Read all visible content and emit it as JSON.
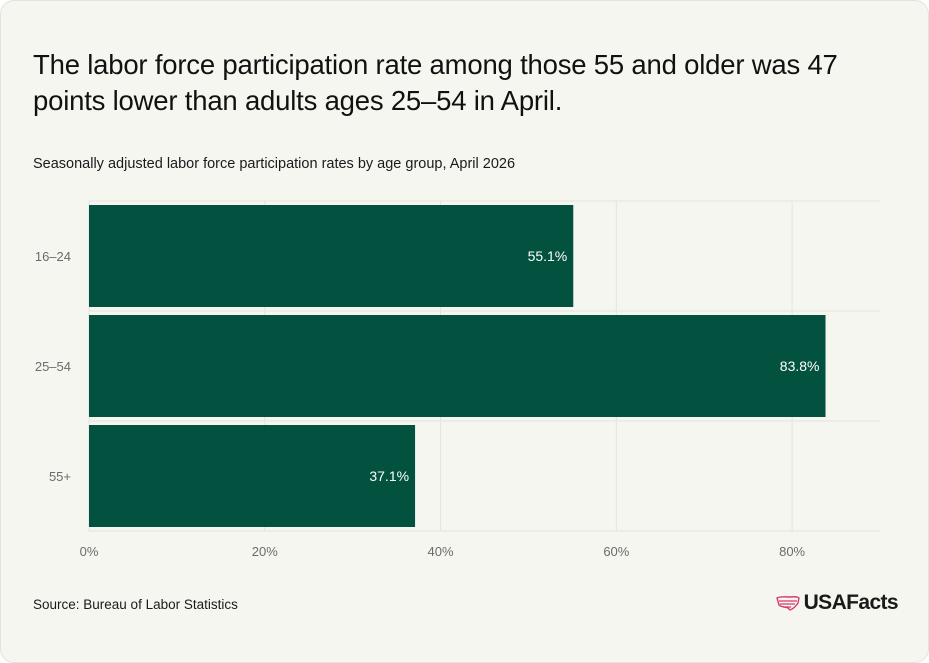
{
  "header": {
    "title": "The labor force participation rate among those 55 and older was 47 points lower than adults ages 25–54 in April.",
    "subtitle": "Seasonally adjusted labor force participation rates by age group, April 2026"
  },
  "footer": {
    "source": "Source: Bureau of Labor Statistics",
    "logo_text": "USAFacts"
  },
  "colors": {
    "bar": "#02523f",
    "grid": "#e4e4de",
    "label_inside": "#ffffff",
    "tick": "#6b6b6b",
    "logo_accent": "#d63a6e"
  },
  "chart_data": {
    "type": "bar",
    "orientation": "horizontal",
    "categories": [
      "16–24",
      "25–54",
      "55+"
    ],
    "values": [
      55.1,
      83.8,
      37.1
    ],
    "data_labels": [
      "55.1%",
      "83.8%",
      "37.1%"
    ],
    "xlim": [
      0,
      90
    ],
    "xticks": [
      0,
      20,
      40,
      60,
      80
    ],
    "xtick_labels": [
      "0%",
      "20%",
      "40%",
      "60%",
      "80%"
    ],
    "grid": true
  }
}
